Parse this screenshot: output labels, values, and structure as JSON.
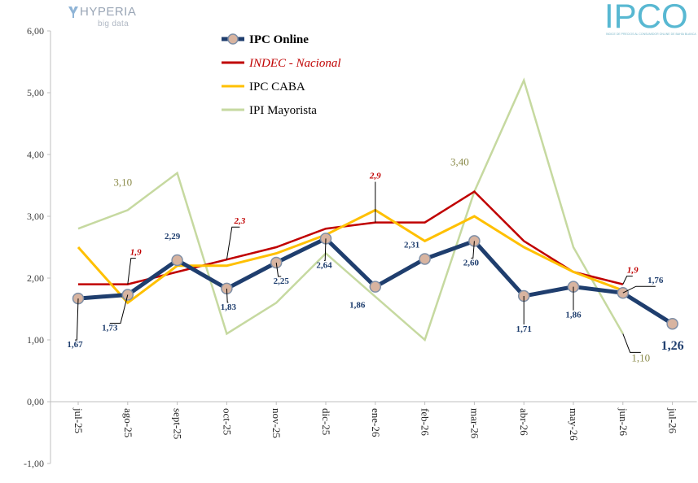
{
  "logos": {
    "hyperia": {
      "name": "HYPERIA",
      "sub": "big data"
    },
    "ipco": {
      "name": "IPCO",
      "sub": "ÍNDICE DE PRECIOS AL CONSUMIDOR ONLINE DE BAHÍA BLANCA"
    }
  },
  "chart_data": {
    "type": "line",
    "title": "",
    "xlabel": "",
    "ylabel": "",
    "ylim": [
      -1,
      6
    ],
    "yticks": [
      "-1,00",
      "0,00",
      "1,00",
      "2,00",
      "3,00",
      "4,00",
      "5,00",
      "6,00"
    ],
    "grid": false,
    "legend_position": "top-center",
    "categories": [
      "jul-25",
      "ago-25",
      "sept-25",
      "oct-25",
      "nov-25",
      "dic-25",
      "ene-26",
      "feb-26",
      "mar-26",
      "abr-26",
      "may-26",
      "jun-26",
      "jul-26"
    ],
    "series": [
      {
        "name": "IPI Mayorista",
        "color": "#c6d9a0",
        "values": [
          2.8,
          3.1,
          3.7,
          1.1,
          1.6,
          2.4,
          1.7,
          1.0,
          3.4,
          5.2,
          2.5,
          1.1,
          null
        ]
      },
      {
        "name": "INDEC - Nacional",
        "color": "#c00000",
        "values": [
          1.9,
          1.9,
          2.1,
          2.3,
          2.5,
          2.8,
          2.9,
          2.9,
          3.4,
          2.6,
          2.1,
          1.9,
          null
        ]
      },
      {
        "name": "IPC CABA",
        "color": "#ffc000",
        "values": [
          2.5,
          1.6,
          2.2,
          2.2,
          2.4,
          2.7,
          3.1,
          2.6,
          3.0,
          2.5,
          2.1,
          1.8,
          null
        ]
      },
      {
        "name": "IPC Online",
        "color": "#1f3e6e",
        "values": [
          1.67,
          1.73,
          2.29,
          1.83,
          2.25,
          2.64,
          1.86,
          2.31,
          2.6,
          1.71,
          1.86,
          1.76,
          1.26
        ]
      }
    ],
    "data_labels": [
      {
        "text": "1,67",
        "series": "IPC Online",
        "index": 0,
        "color": "#1f3e6e"
      },
      {
        "text": "1,73",
        "series": "IPC Online",
        "index": 1,
        "color": "#1f3e6e"
      },
      {
        "text": "2,29",
        "series": "IPC Online",
        "index": 2,
        "color": "#1f3e6e"
      },
      {
        "text": "1,83",
        "series": "IPC Online",
        "index": 3,
        "color": "#1f3e6e"
      },
      {
        "text": "2,25",
        "series": "IPC Online",
        "index": 4,
        "color": "#1f3e6e"
      },
      {
        "text": "2,64",
        "series": "IPC Online",
        "index": 5,
        "color": "#1f3e6e"
      },
      {
        "text": "1,86",
        "series": "IPC Online",
        "index": 6,
        "color": "#1f3e6e"
      },
      {
        "text": "2,31",
        "series": "IPC Online",
        "index": 7,
        "color": "#1f3e6e"
      },
      {
        "text": "2,60",
        "series": "IPC Online",
        "index": 8,
        "color": "#1f3e6e"
      },
      {
        "text": "1,71",
        "series": "IPC Online",
        "index": 9,
        "color": "#1f3e6e"
      },
      {
        "text": "1,86",
        "series": "IPC Online",
        "index": 10,
        "color": "#1f3e6e"
      },
      {
        "text": "1,76",
        "series": "IPC Online",
        "index": 11,
        "color": "#1f3e6e"
      },
      {
        "text": "1,26",
        "series": "IPC Online",
        "index": 12,
        "color": "#1f3e6e"
      },
      {
        "text": "1,9",
        "series": "INDEC - Nacional",
        "index": 1,
        "color": "#c00000"
      },
      {
        "text": "2,3",
        "series": "INDEC - Nacional",
        "index": 3,
        "color": "#c00000"
      },
      {
        "text": "2,9",
        "series": "INDEC - Nacional",
        "index": 6,
        "color": "#c00000"
      },
      {
        "text": "1,9",
        "series": "INDEC - Nacional",
        "index": 11,
        "color": "#c00000"
      },
      {
        "text": "3,10",
        "series": "IPI Mayorista",
        "index": 1,
        "color": "#8b8b4a"
      },
      {
        "text": "3,40",
        "series": "IPI Mayorista",
        "index": 8,
        "color": "#8b8b4a"
      },
      {
        "text": "1,10",
        "series": "IPI Mayorista",
        "index": 11,
        "color": "#8b8b4a"
      }
    ]
  }
}
